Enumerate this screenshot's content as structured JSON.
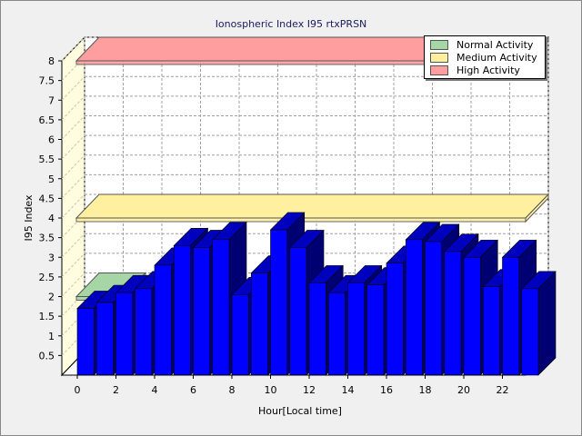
{
  "chart_data": {
    "type": "bar",
    "title": "Ionospheric Index I95 rtxPRSN",
    "xlabel": "Hour[Local time]",
    "ylabel": "I95 Index",
    "ylim": [
      0,
      8
    ],
    "yticks": [
      "0.5",
      "1",
      "1.5",
      "2",
      "2.5",
      "3",
      "3.5",
      "4",
      "4.5",
      "5",
      "5.5",
      "6",
      "6.5",
      "7",
      "7.5",
      "8"
    ],
    "xticks": [
      "0",
      "2",
      "4",
      "6",
      "8",
      "10",
      "12",
      "14",
      "16",
      "18",
      "20",
      "22"
    ],
    "x": [
      0,
      1,
      2,
      3,
      4,
      5,
      6,
      7,
      8,
      9,
      10,
      11,
      12,
      13,
      14,
      15,
      16,
      17,
      18,
      19,
      20,
      21,
      22,
      23
    ],
    "values": [
      1.7,
      1.85,
      2.1,
      2.2,
      2.8,
      3.3,
      3.25,
      3.45,
      2.05,
      2.6,
      3.7,
      3.25,
      2.35,
      2.1,
      2.35,
      2.3,
      2.85,
      3.45,
      3.4,
      3.15,
      3.0,
      2.25,
      3.0,
      2.2
    ],
    "bar_color": "#0000ff",
    "grid": true,
    "legend": {
      "placement": "top-right",
      "entries": [
        {
          "label": "Normal Activity",
          "color": "#a6d5a6"
        },
        {
          "label": "Medium Activity",
          "color": "#fff0a0"
        },
        {
          "label": "High Activity",
          "color": "#ff9e9e"
        }
      ]
    },
    "bands": [
      {
        "name": "Normal Activity",
        "value": 2.0,
        "color": "#a6d5a6"
      },
      {
        "name": "Medium Activity",
        "value": 4.0,
        "color": "#fff0a0"
      },
      {
        "name": "High Activity",
        "value": 8.0,
        "color": "#ff9e9e"
      }
    ]
  }
}
